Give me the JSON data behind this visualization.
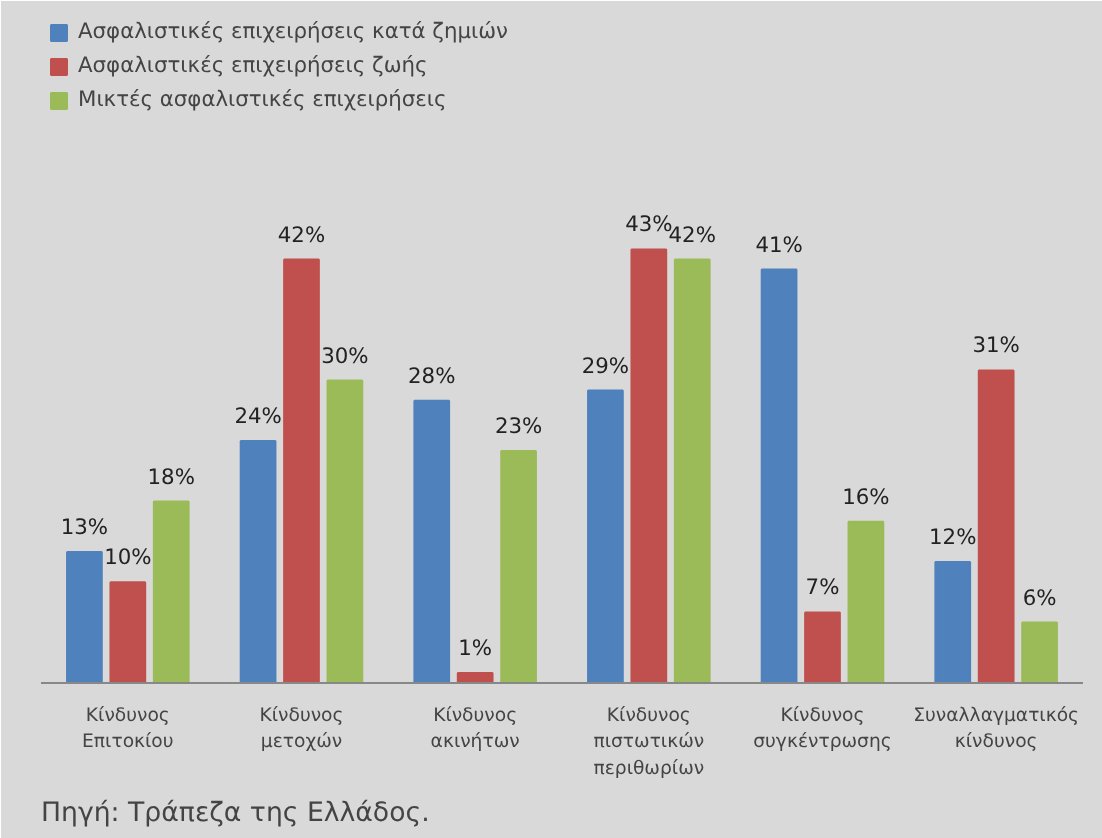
{
  "chart_data": {
    "type": "bar",
    "categories": [
      "Κίνδυνος Επιτοκίου",
      "Κίνδυνος μετοχών",
      "Κίνδυνος ακινήτων",
      "Κίνδυνος πιστωτικών περιθωρίων",
      "Κίνδυνος συγκέντρωσης",
      "Συναλλαγματικός κίνδυνος"
    ],
    "series": [
      {
        "name": "Ασφαλιστικές επιχειρήσεις κατά ζημιών",
        "color": "#4f81bd",
        "values": [
          13,
          24,
          28,
          29,
          41,
          12
        ],
        "value_labels": [
          "13%",
          "24%",
          "28%",
          "29%",
          "41%",
          "12%"
        ]
      },
      {
        "name": "Ασφαλιστικές επιχειρήσεις ζωής",
        "color": "#c0504d",
        "values": [
          10,
          42,
          1,
          43,
          7,
          31
        ],
        "value_labels": [
          "10%",
          "42%",
          "1%",
          "43%",
          "7%",
          "31%"
        ]
      },
      {
        "name": "Μικτές ασφαλιστικές επιχειρήσεις",
        "color": "#9bbb59",
        "values": [
          18,
          30,
          23,
          42,
          16,
          6
        ],
        "value_labels": [
          "18%",
          "30%",
          "23%",
          "42%",
          "16%",
          "6%"
        ]
      }
    ],
    "legend": "top left",
    "annotations": [
      "Πηγή: Τράπεζα της Ελλάδος."
    ]
  }
}
